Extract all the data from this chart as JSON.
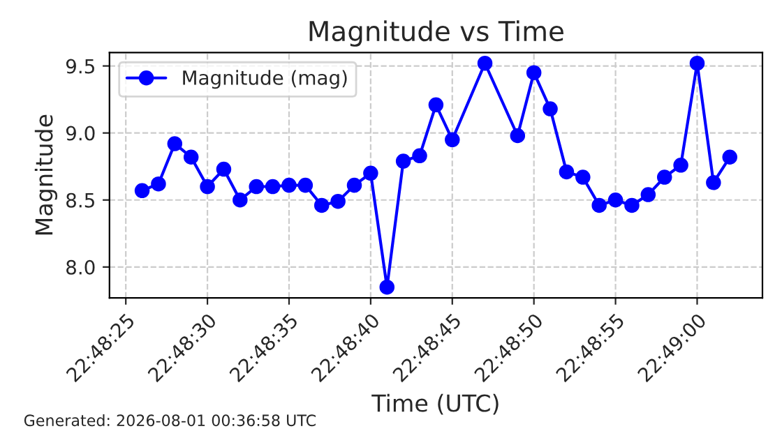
{
  "chart_data": {
    "type": "line",
    "title": "Magnitude vs Time",
    "xlabel": "Time (UTC)",
    "ylabel": "Magnitude",
    "x": [
      "2026-07-31T22:48:26",
      "2026-07-31T22:48:27",
      "2026-07-31T22:48:28",
      "2026-07-31T22:48:29",
      "2026-07-31T22:48:30",
      "2026-07-31T22:48:31",
      "2026-07-31T22:48:32",
      "2026-07-31T22:48:33",
      "2026-07-31T22:48:34",
      "2026-07-31T22:48:35",
      "2026-07-31T22:48:36",
      "2026-07-31T22:48:37",
      "2026-07-31T22:48:38",
      "2026-07-31T22:48:39",
      "2026-07-31T22:48:40",
      "2026-07-31T22:48:41",
      "2026-07-31T22:48:42",
      "2026-07-31T22:48:43",
      "2026-07-31T22:48:44",
      "2026-07-31T22:48:45",
      "2026-07-31T22:48:47",
      "2026-07-31T22:48:49",
      "2026-07-31T22:48:50",
      "2026-07-31T22:48:51",
      "2026-07-31T22:48:52",
      "2026-07-31T22:48:53",
      "2026-07-31T22:48:54",
      "2026-07-31T22:48:55",
      "2026-07-31T22:48:56",
      "2026-07-31T22:48:57",
      "2026-07-31T22:48:58",
      "2026-07-31T22:48:59",
      "2026-07-31T22:49:00",
      "2026-07-31T22:49:01",
      "2026-07-31T22:49:02"
    ],
    "series": [
      {
        "name": "Magnitude (mag)",
        "color": "#0000ff",
        "values": [
          8.57,
          8.62,
          8.92,
          8.82,
          8.6,
          8.73,
          8.5,
          8.6,
          8.6,
          8.61,
          8.61,
          8.46,
          8.49,
          8.61,
          8.7,
          7.85,
          8.79,
          8.83,
          9.21,
          8.95,
          9.52,
          8.98,
          9.45,
          9.18,
          8.71,
          8.67,
          8.46,
          8.5,
          8.46,
          8.54,
          8.67,
          8.76,
          9.52,
          8.63,
          8.82
        ]
      }
    ],
    "xlim": [
      "2026-07-31T22:48:24",
      "2026-07-31T22:49:04"
    ],
    "xticks": [
      {
        "value": "2026-07-31T22:48:25",
        "label": "22:48:25"
      },
      {
        "value": "2026-07-31T22:48:30",
        "label": "22:48:30"
      },
      {
        "value": "2026-07-31T22:48:35",
        "label": "22:48:35"
      },
      {
        "value": "2026-07-31T22:48:40",
        "label": "22:48:40"
      },
      {
        "value": "2026-07-31T22:48:45",
        "label": "22:48:45"
      },
      {
        "value": "2026-07-31T22:48:50",
        "label": "22:48:50"
      },
      {
        "value": "2026-07-31T22:48:55",
        "label": "22:48:55"
      },
      {
        "value": "2026-07-31T22:49:00",
        "label": "22:49:00"
      }
    ],
    "ylim": [
      7.77,
      9.6
    ],
    "yticks": [
      {
        "value": 8,
        "label": "8.0"
      },
      8.5,
      {
        "value": 9,
        "label": "9.0"
      },
      9.5
    ],
    "grid": true,
    "legend": "top left",
    "marker": "circle",
    "line_style": "solid",
    "annotations": [
      "Generated: 2026-08-01 00:36:58 UTC"
    ]
  }
}
